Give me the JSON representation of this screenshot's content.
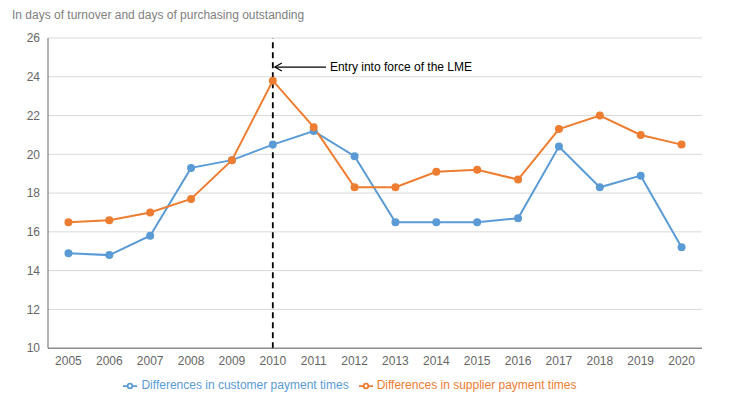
{
  "chart_data": {
    "type": "line",
    "ylabel": "In days of turnover and days of purchasing outstanding",
    "x": [
      2005,
      2006,
      2007,
      2008,
      2009,
      2010,
      2011,
      2012,
      2013,
      2014,
      2015,
      2016,
      2017,
      2018,
      2019,
      2020
    ],
    "series": [
      {
        "name": "Differences in customer payment times",
        "color": "#5B9BD5",
        "values": [
          14.9,
          14.8,
          15.8,
          19.3,
          19.7,
          20.5,
          21.2,
          19.9,
          16.5,
          16.5,
          16.5,
          16.7,
          20.4,
          18.3,
          18.9,
          15.2
        ]
      },
      {
        "name": "Differences in supplier payment times",
        "color": "#ED7D31",
        "values": [
          16.5,
          16.6,
          17.0,
          17.7,
          19.7,
          23.8,
          21.4,
          18.3,
          18.3,
          19.1,
          19.2,
          18.7,
          21.3,
          22.0,
          21.0,
          20.5
        ]
      }
    ],
    "xlim": [
      2004.5,
      2020.5
    ],
    "xticks": [
      2005,
      2006,
      2007,
      2008,
      2009,
      2010,
      2011,
      2012,
      2013,
      2014,
      2015,
      2016,
      2017,
      2018,
      2019,
      2020
    ],
    "ylim": [
      10,
      26
    ],
    "yticks": [
      10,
      12,
      14,
      16,
      18,
      20,
      22,
      24,
      26
    ],
    "vlines": [
      2010
    ],
    "annotations": [
      {
        "text": "Entry into force of the LME",
        "x": 2010,
        "y": 24.5
      }
    ],
    "grid": true,
    "legend": "bottom",
    "marker": "circle"
  }
}
